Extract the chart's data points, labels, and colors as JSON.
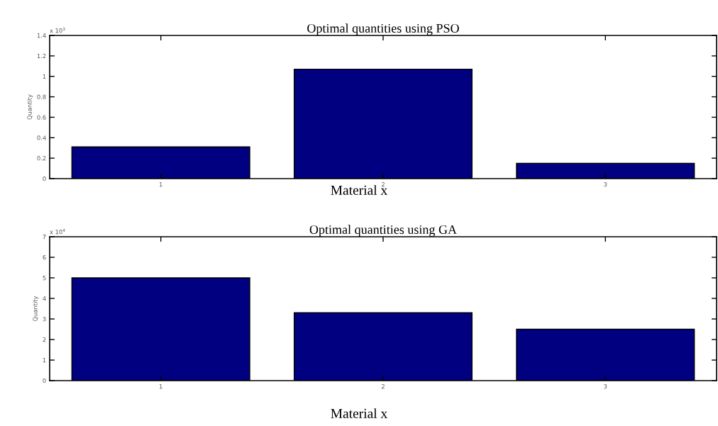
{
  "chart_data": [
    {
      "type": "bar",
      "title": "Optimal quantities using PSO",
      "xlabel": "Material x",
      "ylabel": "Quantity",
      "categories": [
        "1",
        "2",
        "3"
      ],
      "values": [
        0.31,
        1.07,
        0.15
      ],
      "color": "#000080",
      "ylim": [
        0,
        1.4
      ],
      "yticks": [
        0,
        0.2,
        0.4,
        0.6,
        0.8,
        1,
        1.2,
        1.4
      ],
      "annotations": [
        "x 10$^{3}$"
      ],
      "grid": false,
      "legend": false
    },
    {
      "type": "bar",
      "title": "Optimal quantities using GA",
      "xlabel": "Material x",
      "ylabel": "Quantity",
      "categories": [
        "1",
        "2",
        "3"
      ],
      "values": [
        5.0,
        3.3,
        2.5
      ],
      "color": "#000080",
      "ylim": [
        0,
        7
      ],
      "yticks": [
        0,
        1,
        2,
        3,
        4,
        5,
        6,
        7
      ],
      "annotations": [
        "x 10$^{4}$"
      ],
      "grid": false,
      "legend": false
    }
  ]
}
